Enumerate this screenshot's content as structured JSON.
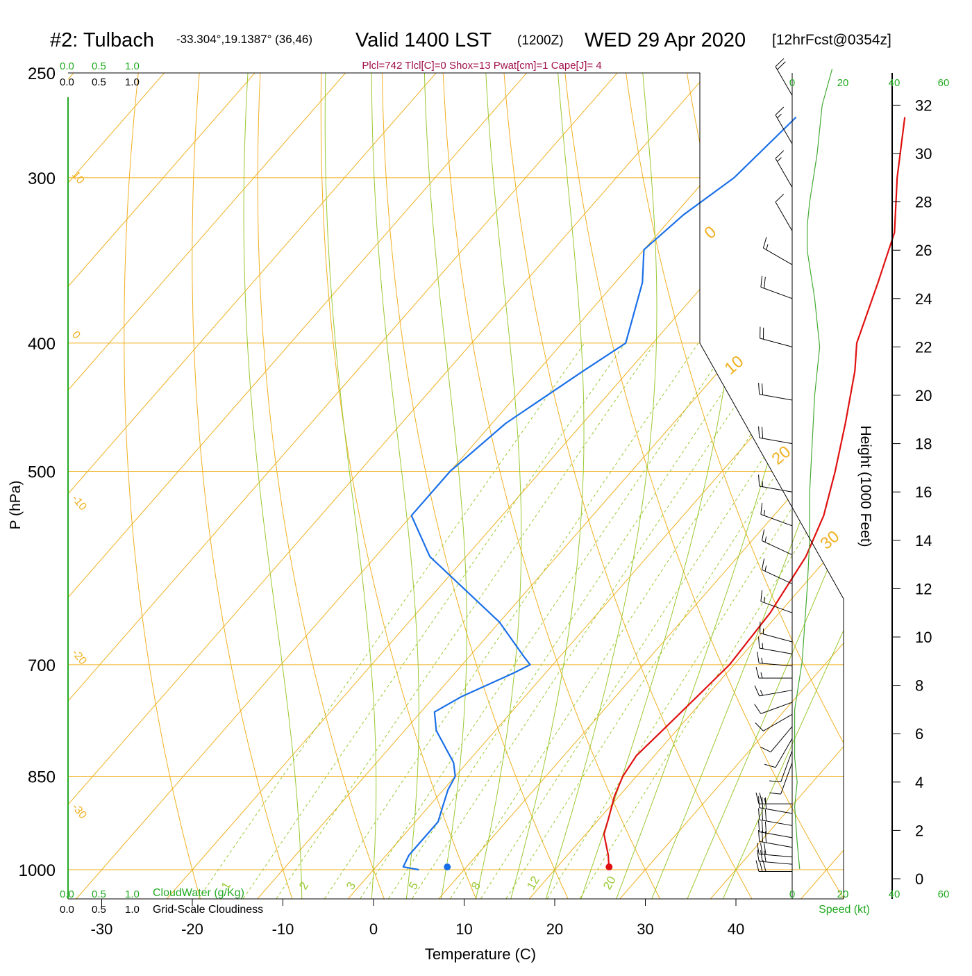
{
  "header": {
    "station": "#2: Tulbach",
    "coords": "-33.304°,19.1387° (36,46)",
    "valid": "Valid 1400 LST",
    "zulu": "(1200Z)",
    "date": "WED 29 Apr 2020",
    "forecast": "[12hrFcst@0354z]",
    "indices": "Plcl=742 Tlcl[C]=0 Shox=13 Pwat[cm]=1 Cape[J]= 4"
  },
  "cloud_scale": {
    "values": [
      "0.0",
      "0.5",
      "1.0"
    ],
    "water_label": "CloudWater (g/Kg)",
    "cover_label": "Grid-Scale Cloudiness"
  },
  "speed_scale": {
    "ticks": [
      "0",
      "20",
      "40",
      "60"
    ],
    "label": "Speed (kt)"
  },
  "colors": {
    "temperature": "#e01010",
    "dewpoint": "#1a6fe8",
    "isotherm_dry_adiabat": "#f0b020",
    "moist_adiabat": "#9ac830",
    "mixing_ratio": "#9ac830",
    "green_text": "#22aa22",
    "indices_text": "#a0104a",
    "speed_line": "#44aa33"
  },
  "chart_data": {
    "type": "line",
    "xlabel": "Temperature (C)",
    "ylabel": "P (hPa)",
    "y2label": "Height (1000 Feet)",
    "xlim": [
      -30,
      40
    ],
    "ylim": [
      1000,
      250
    ],
    "x_ticks": [
      "-30",
      "-20",
      "-10",
      "0",
      "10",
      "20",
      "30",
      "40"
    ],
    "y_ticks": [
      "250",
      "300",
      "400",
      "500",
      "700",
      "850",
      "1000"
    ],
    "height_ticks": [
      "0",
      "2",
      "4",
      "6",
      "8",
      "10",
      "12",
      "14",
      "16",
      "18",
      "20",
      "22",
      "24",
      "26",
      "28",
      "30",
      "32"
    ],
    "isotherm_labels": [
      "10",
      "0",
      "-10",
      "-20",
      "-30"
    ],
    "skew_isotherm_labels": [
      "0",
      "10",
      "20",
      "30"
    ],
    "mixing_ratio_labels": [
      "1",
      "2",
      "3",
      "5",
      "8",
      "12",
      "20"
    ],
    "series": [
      {
        "name": "Temperature",
        "points": [
          [
            26.0,
            1000
          ],
          [
            24.5,
            975
          ],
          [
            22.0,
            940
          ],
          [
            21.0,
            915
          ],
          [
            19.5,
            880
          ],
          [
            18.5,
            850
          ],
          [
            18.0,
            820
          ],
          [
            18.5,
            780
          ],
          [
            19.0,
            740
          ],
          [
            19.5,
            700
          ],
          [
            19.0,
            640
          ],
          [
            17.5,
            580
          ],
          [
            15.5,
            540
          ],
          [
            12.5,
            500
          ],
          [
            9.0,
            460
          ],
          [
            5.0,
            420
          ],
          [
            2.5,
            400
          ],
          [
            -1.0,
            360
          ],
          [
            -4.0,
            330
          ],
          [
            -9.0,
            300
          ],
          [
            -14.0,
            270
          ]
        ]
      },
      {
        "name": "Dewpoint",
        "points": [
          [
            5.0,
            1000
          ],
          [
            3.0,
            995
          ],
          [
            2.5,
            975
          ],
          [
            2.5,
            920
          ],
          [
            1.5,
            895
          ],
          [
            0.5,
            870
          ],
          [
            0.0,
            850
          ],
          [
            -1.5,
            830
          ],
          [
            -6.5,
            785
          ],
          [
            -8.5,
            760
          ],
          [
            -7.0,
            740
          ],
          [
            -3.5,
            710
          ],
          [
            -2.5,
            700
          ],
          [
            -4.0,
            690
          ],
          [
            -10.0,
            650
          ],
          [
            -24.0,
            580
          ],
          [
            -30.0,
            540
          ],
          [
            -30.0,
            500
          ],
          [
            -28.5,
            460
          ],
          [
            -25.0,
            420
          ],
          [
            -23.0,
            400
          ],
          [
            -27.0,
            360
          ],
          [
            -30.0,
            340
          ],
          [
            -29.0,
            320
          ],
          [
            -27.0,
            300
          ],
          [
            -26.0,
            270
          ]
        ]
      }
    ],
    "surface_temperature": 26.0,
    "surface_dewpoint": 5.0,
    "wind_barbs": [
      {
        "height_kft": 0.3,
        "dir": 270,
        "speed": 30
      },
      {
        "height_kft": 0.6,
        "dir": 275,
        "speed": 30
      },
      {
        "height_kft": 0.9,
        "dir": 275,
        "speed": 30
      },
      {
        "height_kft": 1.3,
        "dir": 280,
        "speed": 30
      },
      {
        "height_kft": 1.7,
        "dir": 280,
        "speed": 30
      },
      {
        "height_kft": 2.2,
        "dir": 280,
        "speed": 30
      },
      {
        "height_kft": 2.7,
        "dir": 280,
        "speed": 30
      },
      {
        "height_kft": 3.1,
        "dir": 270,
        "speed": 25
      },
      {
        "height_kft": 4.8,
        "dir": 200,
        "speed": 10
      },
      {
        "height_kft": 5.3,
        "dir": 200,
        "speed": 10
      },
      {
        "height_kft": 5.8,
        "dir": 210,
        "speed": 10
      },
      {
        "height_kft": 6.3,
        "dir": 220,
        "speed": 10
      },
      {
        "height_kft": 6.8,
        "dir": 240,
        "speed": 10
      },
      {
        "height_kft": 7.3,
        "dir": 250,
        "speed": 10
      },
      {
        "height_kft": 7.8,
        "dir": 260,
        "speed": 15
      },
      {
        "height_kft": 8.3,
        "dir": 270,
        "speed": 15
      },
      {
        "height_kft": 8.8,
        "dir": 275,
        "speed": 15
      },
      {
        "height_kft": 9.3,
        "dir": 280,
        "speed": 15
      },
      {
        "height_kft": 9.8,
        "dir": 285,
        "speed": 15
      },
      {
        "height_kft": 11.0,
        "dir": 290,
        "speed": 15
      },
      {
        "height_kft": 12.2,
        "dir": 295,
        "speed": 15
      },
      {
        "height_kft": 13.4,
        "dir": 295,
        "speed": 15
      },
      {
        "height_kft": 14.6,
        "dir": 290,
        "speed": 15
      },
      {
        "height_kft": 16.0,
        "dir": 280,
        "speed": 15
      },
      {
        "height_kft": 18.0,
        "dir": 280,
        "speed": 20
      },
      {
        "height_kft": 19.8,
        "dir": 280,
        "speed": 20
      },
      {
        "height_kft": 22.0,
        "dir": 285,
        "speed": 20
      },
      {
        "height_kft": 24.0,
        "dir": 290,
        "speed": 20
      },
      {
        "height_kft": 25.4,
        "dir": 300,
        "speed": 15
      },
      {
        "height_kft": 26.8,
        "dir": 330,
        "speed": 10
      },
      {
        "height_kft": 28.6,
        "dir": 330,
        "speed": 15
      },
      {
        "height_kft": 30.4,
        "dir": 330,
        "speed": 15
      },
      {
        "height_kft": 32.4,
        "dir": 330,
        "speed": 20
      }
    ],
    "wind_speed_profile": [
      [
        0.4,
        3
      ],
      [
        1.5,
        2
      ],
      [
        3.0,
        1
      ],
      [
        4.0,
        2
      ],
      [
        5.0,
        1
      ],
      [
        7.0,
        1
      ],
      [
        9.0,
        4
      ],
      [
        10.5,
        5
      ],
      [
        12.0,
        6
      ],
      [
        14.0,
        7
      ],
      [
        16.0,
        7
      ],
      [
        18.0,
        8
      ],
      [
        20.0,
        9
      ],
      [
        22.0,
        11
      ],
      [
        24.0,
        9
      ],
      [
        26.0,
        6
      ],
      [
        27.0,
        6
      ],
      [
        28.0,
        7
      ],
      [
        30.0,
        10
      ],
      [
        32.0,
        12
      ],
      [
        33.5,
        16
      ]
    ]
  }
}
